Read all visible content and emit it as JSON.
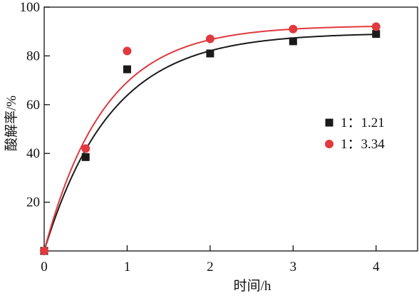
{
  "chart_data": {
    "type": "scatter",
    "title": "",
    "xlabel": "时间/h",
    "ylabel": "酸解率/%",
    "xlim": [
      0,
      4.5
    ],
    "ylim": [
      0,
      100
    ],
    "x_ticks": [
      0,
      1,
      2,
      3,
      4
    ],
    "y_ticks": [
      20,
      40,
      60,
      80,
      100
    ],
    "x_tick_labels": [
      "0",
      "1",
      "2",
      "3",
      "4"
    ],
    "y_tick_labels": [
      "20",
      "40",
      "60",
      "80",
      "100"
    ],
    "grid": false,
    "legend_position": "right",
    "series": [
      {
        "name": "1：1.21",
        "marker": "square",
        "color": "#1a1a1a",
        "x": [
          0,
          0.5,
          1,
          2,
          3,
          4
        ],
        "y": [
          0,
          38.5,
          74.5,
          81,
          86,
          89
        ],
        "fit_curve": true
      },
      {
        "name": "1：3.34",
        "marker": "circle",
        "color": "#e0393e",
        "x": [
          0,
          0.5,
          1,
          2,
          3,
          4
        ],
        "y": [
          0,
          42,
          82,
          87,
          91,
          92
        ],
        "fit_curve": true
      }
    ]
  }
}
